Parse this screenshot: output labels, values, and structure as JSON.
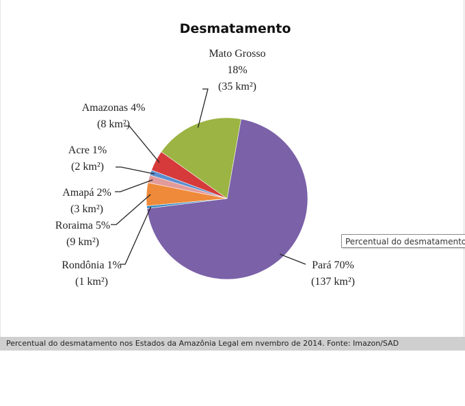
{
  "chart_data": {
    "type": "pie",
    "title": "Desmatamento",
    "slices": [
      {
        "name": "Pará",
        "percent_label": "70%",
        "value": 137,
        "unit_label": "(137 km²)",
        "color": "#7b61a8"
      },
      {
        "name": "Rondônia",
        "percent_label": "1%",
        "value": 1,
        "unit_label": "(1 km²)",
        "color": "#3d8ec4"
      },
      {
        "name": "Roraima",
        "percent_label": "5%",
        "value": 9,
        "unit_label": "(9 km²)",
        "color": "#ef8a3a"
      },
      {
        "name": "Amapá",
        "percent_label": "2%",
        "value": 3,
        "unit_label": "(3 km²)",
        "color": "#e39a9a"
      },
      {
        "name": "Acre",
        "percent_label": "1%",
        "value": 2,
        "unit_label": "(2 km²)",
        "color": "#5b8fd0"
      },
      {
        "name": "Amazonas",
        "percent_label": "4%",
        "value": 8,
        "unit_label": "(8 km²)",
        "color": "#d63a3a"
      },
      {
        "name": "Mato Grosso",
        "percent_label": "18%",
        "value": 35,
        "unit_label": "(35 km²)",
        "color": "#9bb443"
      }
    ]
  },
  "tooltip": {
    "text": "Percentual do desmatamento nos"
  },
  "caption": {
    "text": "Percentual do desmatamento nos Estados da Amazônia Legal em nvembro de 2014. Fonte: Imazon/SAD"
  }
}
